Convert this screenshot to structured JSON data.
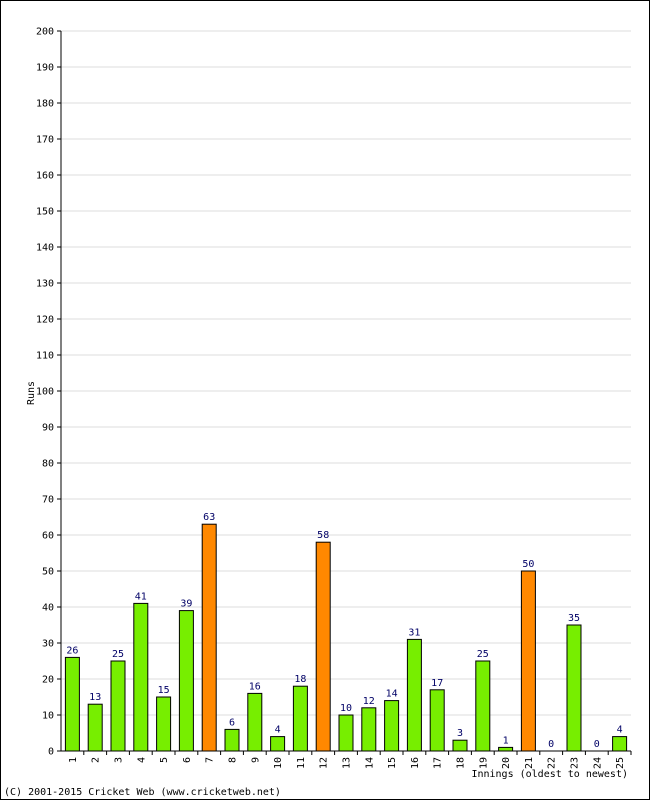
{
  "chart_data": {
    "type": "bar",
    "title": "",
    "xlabel": "Innings (oldest to newest)",
    "ylabel": "Runs",
    "ylim": [
      0,
      200
    ],
    "y_ticks": [
      0,
      10,
      20,
      30,
      40,
      50,
      60,
      70,
      80,
      90,
      100,
      110,
      120,
      130,
      140,
      150,
      160,
      170,
      180,
      190,
      200
    ],
    "categories": [
      "1",
      "2",
      "3",
      "4",
      "5",
      "6",
      "7",
      "8",
      "9",
      "10",
      "11",
      "12",
      "13",
      "14",
      "15",
      "16",
      "17",
      "18",
      "19",
      "20",
      "21",
      "22",
      "23",
      "24",
      "25"
    ],
    "values": [
      26,
      13,
      25,
      41,
      15,
      39,
      63,
      6,
      16,
      4,
      18,
      58,
      10,
      12,
      14,
      31,
      17,
      3,
      25,
      1,
      50,
      0,
      35,
      0,
      4
    ],
    "grid": true,
    "colors": {
      "bar_default": "#77ee00",
      "bar_fifty": "#ff8800",
      "bar_border": "#000000",
      "data_label": "#000066",
      "grid": "#dddddd",
      "axis": "#000000"
    }
  },
  "footer": {
    "copyright": "(C) 2001-2015 Cricket Web (www.cricketweb.net)"
  }
}
